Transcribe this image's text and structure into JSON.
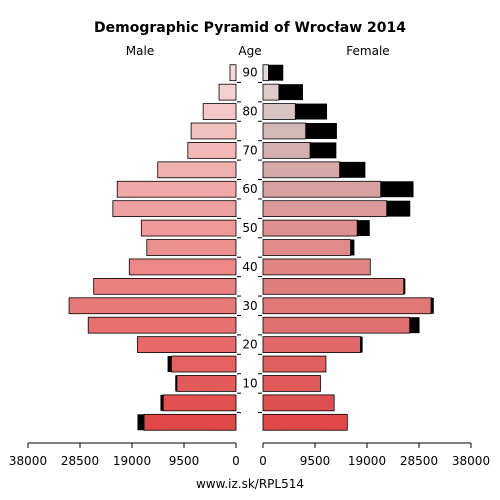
{
  "chart_data": {
    "type": "bar",
    "title": "Demographic Pyramid of Wrocław 2014",
    "left_label": "Male",
    "center_label": "Age",
    "right_label": "Female",
    "footer": "www.iz.sk/RPL514",
    "x_ticks_left": [
      "38000",
      "28500",
      "19000",
      "9500",
      "0"
    ],
    "x_ticks_right": [
      "0",
      "9500",
      "19000",
      "28500",
      "38000"
    ],
    "x_tick_values": [
      38000,
      28500,
      19000,
      9500,
      0
    ],
    "age_ticks": [
      {
        "label": "10",
        "group": 2
      },
      {
        "label": "20",
        "group": 4
      },
      {
        "label": "30",
        "group": 6
      },
      {
        "label": "40",
        "group": 8
      },
      {
        "label": "50",
        "group": 10
      },
      {
        "label": "60",
        "group": 12
      },
      {
        "label": "70",
        "group": 14
      },
      {
        "label": "80",
        "group": 16
      },
      {
        "label": "90",
        "group": 18
      }
    ],
    "xlim": [
      0,
      38000
    ],
    "age_groups": [
      "0-4",
      "5-9",
      "10-14",
      "15-19",
      "20-24",
      "25-29",
      "30-34",
      "35-39",
      "40-44",
      "45-49",
      "50-54",
      "55-59",
      "60-64",
      "65-69",
      "70-74",
      "75-79",
      "80-84",
      "85-89",
      "90+"
    ],
    "series": [
      {
        "name": "Male",
        "values": [
          16800,
          13300,
          10800,
          11800,
          18000,
          27000,
          30500,
          26000,
          19500,
          16300,
          17300,
          22500,
          21700,
          14300,
          8800,
          8200,
          6000,
          3100,
          1100
        ],
        "extra": [
          1200,
          500,
          300,
          700,
          0,
          0,
          0,
          0,
          0,
          0,
          0,
          0,
          0,
          0,
          0,
          0,
          0,
          0,
          0
        ]
      },
      {
        "name": "Female",
        "values": [
          15400,
          13000,
          10500,
          11500,
          17800,
          26800,
          30700,
          25700,
          19600,
          16000,
          17200,
          22600,
          21500,
          14000,
          8600,
          7800,
          5900,
          2900,
          1000
        ],
        "extra": [
          0,
          0,
          0,
          0,
          400,
          1800,
          500,
          300,
          0,
          700,
          2300,
          4300,
          6000,
          4700,
          4800,
          5700,
          5800,
          4400,
          2700
        ]
      }
    ],
    "male_colors": [
      "#e04848",
      "#e25050",
      "#e35858",
      "#e56060",
      "#e66868",
      "#e87070",
      "#e97878",
      "#ea8080",
      "#ec8888",
      "#ed9090",
      "#ee9898",
      "#efa0a0",
      "#f0a8a8",
      "#f1b0b0",
      "#f2b8b8",
      "#f3c0c0",
      "#f4c8c8",
      "#f5d0d0",
      "#f7dada"
    ],
    "female_colors": [
      "#e04848",
      "#e05050",
      "#e05858",
      "#e06060",
      "#e06868",
      "#e07070",
      "#e07878",
      "#e07e7e",
      "#e08484",
      "#e08a8a",
      "#e09090",
      "#dd9a9a",
      "#d8a0a0",
      "#d6a8a8",
      "#d4b0b0",
      "#d4b8b8",
      "#d8c4c4",
      "#dccccc",
      "#e4dada"
    ],
    "extra_color": "#000000"
  }
}
